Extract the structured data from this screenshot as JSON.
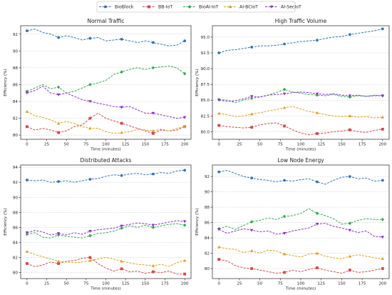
{
  "chart_data": [
    {
      "type": "line",
      "title": "Normal Traffic",
      "xlabel": "Time (minutes)",
      "ylabel": "Efficiency (%)",
      "xlim": [
        -8,
        208
      ],
      "ylim": [
        79.5,
        93.0
      ],
      "xticks": [
        0,
        25,
        50,
        75,
        100,
        125,
        150,
        175,
        200
      ],
      "yticks": [
        80,
        82,
        84,
        86,
        88,
        90,
        92
      ],
      "grid": "horizontal dashed",
      "x": [
        0,
        10,
        20,
        30,
        40,
        50,
        60,
        70,
        80,
        90,
        100,
        110,
        120,
        130,
        140,
        150,
        160,
        170,
        180,
        190,
        200
      ],
      "series": [
        {
          "name": "BioBlock",
          "values": [
            92.4,
            92.6,
            92.2,
            92.0,
            91.6,
            91.8,
            91.6,
            91.3,
            91.5,
            91.6,
            91.2,
            91.3,
            91.4,
            91.2,
            91.0,
            91.2,
            91.0,
            90.8,
            90.6,
            90.7,
            91.2
          ]
        },
        {
          "name": "BB-IoT",
          "values": [
            81.0,
            80.6,
            80.8,
            80.6,
            80.3,
            80.5,
            81.0,
            81.2,
            82.0,
            82.6,
            82.0,
            81.7,
            81.4,
            81.1,
            80.8,
            80.5,
            80.2,
            80.6,
            80.5,
            80.6,
            81.0
          ]
        },
        {
          "name": "BioAI-IoT",
          "values": [
            85.2,
            85.6,
            86.0,
            85.5,
            85.7,
            85.0,
            85.2,
            85.6,
            86.0,
            86.2,
            86.5,
            87.2,
            87.5,
            87.8,
            88.0,
            87.8,
            88.0,
            88.1,
            88.2,
            88.0,
            87.3
          ]
        },
        {
          "name": "AI-BCIoT",
          "values": [
            82.8,
            82.3,
            82.1,
            81.8,
            81.4,
            81.6,
            81.4,
            81.0,
            80.8,
            80.8,
            80.4,
            80.2,
            80.3,
            80.4,
            80.7,
            80.6,
            80.5,
            80.7,
            80.5,
            80.8,
            81.0
          ]
        },
        {
          "name": "AI-SecIoT",
          "values": [
            85.0,
            85.3,
            85.8,
            85.0,
            84.8,
            85.0,
            84.6,
            84.2,
            84.0,
            83.8,
            83.6,
            83.4,
            83.3,
            83.4,
            83.0,
            82.6,
            82.6,
            82.4,
            82.2,
            82.0,
            82.1
          ]
        }
      ]
    },
    {
      "type": "line",
      "title": "High Traffic Volume",
      "xlabel": "Time (minutes)",
      "ylabel": "Efficiency (%)",
      "xlim": [
        -8,
        208
      ],
      "ylim": [
        78.8,
        96.8
      ],
      "xticks": [
        0,
        25,
        50,
        75,
        100,
        125,
        150,
        175,
        200
      ],
      "yticks": [
        80.0,
        82.5,
        85.0,
        87.5,
        90.0,
        92.5,
        95.0
      ],
      "grid": "horizontal dashed",
      "x": [
        0,
        10,
        20,
        30,
        40,
        50,
        60,
        70,
        80,
        90,
        100,
        110,
        120,
        130,
        140,
        150,
        160,
        170,
        180,
        190,
        200
      ],
      "series": [
        {
          "name": "BioBlock",
          "values": [
            92.5,
            92.9,
            93.0,
            93.2,
            93.4,
            93.6,
            93.6,
            93.7,
            93.9,
            94.1,
            94.3,
            94.4,
            94.5,
            94.8,
            95.0,
            95.1,
            95.4,
            95.6,
            95.8,
            96.0,
            96.3
          ]
        },
        {
          "name": "BB-IoT",
          "values": [
            81.0,
            80.8,
            80.7,
            80.6,
            80.7,
            81.1,
            81.3,
            81.4,
            80.9,
            80.3,
            79.8,
            79.5,
            79.7,
            79.8,
            80.0,
            80.1,
            80.3,
            80.0,
            79.9,
            80.2,
            80.4
          ]
        },
        {
          "name": "BioAI-IoT",
          "values": [
            85.1,
            85.0,
            84.6,
            85.0,
            85.3,
            85.5,
            85.8,
            86.2,
            86.7,
            86.3,
            86.1,
            85.9,
            85.8,
            85.7,
            85.9,
            85.6,
            85.5,
            85.7,
            85.6,
            85.8,
            85.7
          ]
        },
        {
          "name": "AI-BCIoT",
          "values": [
            82.9,
            82.7,
            82.4,
            82.5,
            82.8,
            83.0,
            83.3,
            83.5,
            83.8,
            84.0,
            83.6,
            83.2,
            83.0,
            82.7,
            82.5,
            82.4,
            82.5,
            82.3,
            82.4,
            82.2,
            82.3
          ]
        },
        {
          "name": "AI-SecIoT",
          "values": [
            85.0,
            84.8,
            84.9,
            85.2,
            85.6,
            85.5,
            85.8,
            85.9,
            86.0,
            86.2,
            86.3,
            86.2,
            86.0,
            85.9,
            86.0,
            85.8,
            85.7,
            85.8,
            85.6,
            85.7,
            85.7
          ]
        }
      ]
    },
    {
      "type": "line",
      "title": "Distributed Attacks",
      "xlabel": "Time (minutes)",
      "ylabel": "Efficiency (%)",
      "xlim": [
        -8,
        208
      ],
      "ylim": [
        79.2,
        94.3
      ],
      "xticks": [
        0,
        25,
        50,
        75,
        100,
        125,
        150,
        175,
        200
      ],
      "yticks": [
        80,
        82,
        84,
        86,
        88,
        90,
        92,
        94
      ],
      "grid": "horizontal dashed",
      "x": [
        0,
        10,
        20,
        30,
        40,
        50,
        60,
        70,
        80,
        90,
        100,
        110,
        120,
        130,
        140,
        150,
        160,
        170,
        180,
        190,
        200
      ],
      "series": [
        {
          "name": "BioBlock",
          "values": [
            92.3,
            92.2,
            92.3,
            92.0,
            92.1,
            92.2,
            92.0,
            92.2,
            92.4,
            92.5,
            92.8,
            93.0,
            92.9,
            93.1,
            93.2,
            93.0,
            93.1,
            93.3,
            93.2,
            93.5,
            93.6
          ]
        },
        {
          "name": "BB-IoT",
          "values": [
            81.2,
            80.8,
            81.0,
            81.4,
            81.2,
            81.5,
            81.6,
            81.9,
            82.0,
            81.2,
            80.6,
            80.2,
            80.5,
            80.1,
            80.2,
            79.9,
            80.1,
            80.0,
            80.2,
            79.8,
            79.8
          ]
        },
        {
          "name": "BioAI-IoT",
          "values": [
            85.1,
            85.3,
            84.7,
            84.6,
            85.0,
            84.8,
            84.7,
            84.6,
            84.9,
            85.2,
            85.3,
            85.5,
            85.9,
            86.2,
            86.0,
            86.3,
            86.0,
            86.2,
            86.4,
            86.5,
            86.3
          ]
        },
        {
          "name": "AI-BCIoT",
          "values": [
            82.8,
            82.4,
            82.1,
            81.8,
            81.5,
            81.4,
            81.3,
            81.4,
            81.6,
            81.8,
            82.0,
            81.8,
            81.5,
            81.3,
            81.1,
            81.0,
            80.9,
            81.1,
            80.8,
            81.3,
            81.6
          ]
        },
        {
          "name": "AI-SecIoT",
          "values": [
            85.3,
            85.6,
            85.4,
            85.0,
            85.2,
            85.0,
            85.3,
            85.1,
            85.5,
            85.7,
            85.8,
            85.9,
            86.2,
            86.4,
            86.6,
            86.5,
            86.3,
            86.5,
            86.7,
            86.9,
            86.8
          ]
        }
      ]
    },
    {
      "type": "line",
      "title": "Low Node Energy",
      "xlabel": "Time (minutes)",
      "ylabel": "Efficiency (%)",
      "xlim": [
        -8,
        208
      ],
      "ylim": [
        78.7,
        93.5
      ],
      "xticks": [
        0,
        25,
        50,
        75,
        100,
        125,
        150,
        175,
        200
      ],
      "yticks": [
        80,
        82,
        84,
        86,
        88,
        90,
        92
      ],
      "grid": "horizontal dashed",
      "x": [
        0,
        10,
        20,
        30,
        40,
        50,
        60,
        70,
        80,
        90,
        100,
        110,
        120,
        130,
        140,
        150,
        160,
        170,
        180,
        190,
        200
      ],
      "series": [
        {
          "name": "BioBlock",
          "values": [
            92.6,
            92.8,
            92.4,
            92.0,
            91.8,
            91.6,
            91.5,
            91.3,
            91.5,
            91.4,
            91.6,
            91.7,
            91.3,
            91.0,
            91.5,
            91.9,
            92.0,
            91.7,
            91.8,
            91.4,
            91.5
          ]
        },
        {
          "name": "BB-IoT",
          "values": [
            81.2,
            81.0,
            80.4,
            80.1,
            80.0,
            79.8,
            79.6,
            79.4,
            79.5,
            79.8,
            79.6,
            79.9,
            80.1,
            79.8,
            79.6,
            79.4,
            79.8,
            79.5,
            79.6,
            79.8,
            80.0
          ]
        },
        {
          "name": "BioAI-IoT",
          "values": [
            85.2,
            85.5,
            85.1,
            85.6,
            86.1,
            86.3,
            86.6,
            86.4,
            86.8,
            86.9,
            87.2,
            87.8,
            87.2,
            86.9,
            86.5,
            85.8,
            85.9,
            86.3,
            86.5,
            86.4,
            86.4
          ]
        },
        {
          "name": "AI-BCIoT",
          "values": [
            82.8,
            82.6,
            82.5,
            82.1,
            82.3,
            82.0,
            82.4,
            82.3,
            81.9,
            81.7,
            81.5,
            81.9,
            82.0,
            81.6,
            81.4,
            81.3,
            81.6,
            81.8,
            81.6,
            81.4,
            81.3
          ]
        },
        {
          "name": "AI-SecIoT",
          "values": [
            85.1,
            84.6,
            84.9,
            85.2,
            85.0,
            84.8,
            84.9,
            84.5,
            84.6,
            84.9,
            85.1,
            85.3,
            85.8,
            85.9,
            85.5,
            85.3,
            85.0,
            84.7,
            84.9,
            84.2,
            84.1
          ]
        }
      ]
    }
  ],
  "legend": {
    "position": "top-center",
    "items": [
      {
        "label": "BioBlock",
        "color": "#2f73b5",
        "marker": "circle"
      },
      {
        "label": "BB-IoT",
        "color": "#d4474a",
        "marker": "square"
      },
      {
        "label": "BioAI-IoT",
        "color": "#33a553",
        "marker": "diamond"
      },
      {
        "label": "AI-BCIoT",
        "color": "#dd9e1e",
        "marker": "triangle-up"
      },
      {
        "label": "AI-SecIoT",
        "color": "#8b2fc9",
        "marker": "triangle-down"
      }
    ]
  }
}
